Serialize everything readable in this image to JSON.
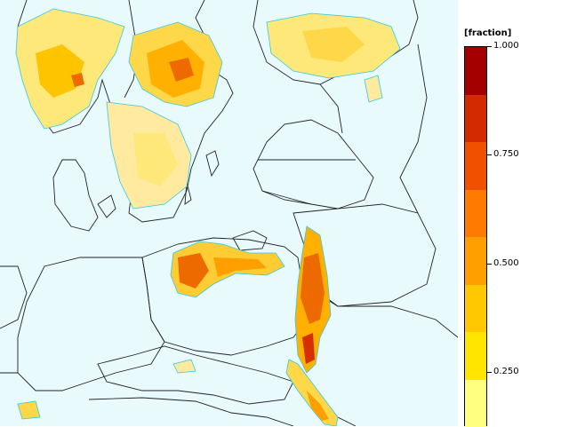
{
  "legend": {
    "title": "[fraction]",
    "tick_labels": [
      "1.000",
      "0.750",
      "0.500",
      "0.250"
    ],
    "tick_values": [
      1.0,
      0.75,
      0.5,
      0.25
    ],
    "color_bins": [
      "#a50000",
      "#d42a00",
      "#f05000",
      "#ff7a00",
      "#ffa000",
      "#ffc800",
      "#ffe600",
      "#ffff80"
    ],
    "range": [
      0.125,
      1.0
    ]
  },
  "colors": {
    "sea": "#e8fafc",
    "border": "#222222",
    "contour": "#33c8e0",
    "low": "#ffe87a",
    "mid": "#ffb400",
    "high": "#ec6a00",
    "peak": "#d43000"
  }
}
